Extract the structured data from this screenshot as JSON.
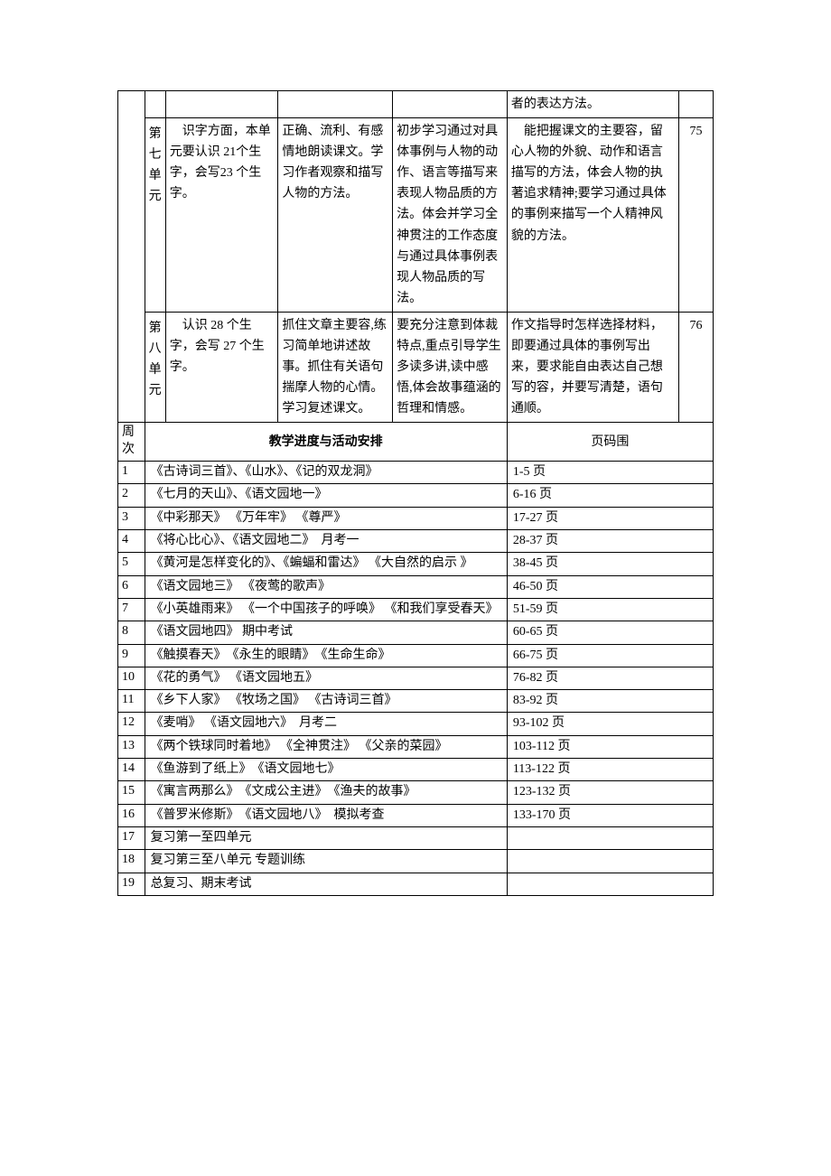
{
  "topRows": [
    {
      "label": "",
      "vocab": "",
      "skills": "",
      "methods": "",
      "focus": "者的表达方法。",
      "page": ""
    },
    {
      "label": "第七单元",
      "vocab": "　识字方面，本单元要认识 21个生字，会写23 个生字。",
      "skills": "正确、流利、有感情地朗读课文。学习作者观察和描写人物的方法。",
      "methods": "初步学习通过对具体事例与人物的动作、语言等描写来表现人物品质的方法。体会并学习全神贯注的工作态度与通过具体事例表现人物品质的写法。",
      "focus": "　能把握课文的主要容，留心人物的外貌、动作和语言描写的方法，体会人物的执著追求精神;要学习通过具体的事例来描写一个人精神风貌的方法。",
      "page": "75"
    },
    {
      "label": "第八单元",
      "vocab": "　认识 28 个生字，会写 27 个生字。",
      "skills": "抓住文章主要容,练习简单地讲述故事。抓住有关语句揣摩人物的心情。 学习复述课文。",
      "methods": "要充分注意到体裁特点,重点引导学生多读多讲,读中感悟,体会故事蕴涵的哲理和情感。",
      "focus": "作文指导时怎样选择材料，即要通过具体的事例写出来，要求能自由表达自己想写的容，并要写清楚，语句通顺。",
      "page": "76"
    }
  ],
  "scheduleHeader": {
    "week": "周次",
    "content": "教学进度与活动安排",
    "page": "页码围"
  },
  "schedule": [
    {
      "w": "1",
      "c": "《古诗词三首》、《山水》、《记的双龙洞》",
      "p": "1-5 页"
    },
    {
      "w": "2",
      "c": "《七月的天山》、《语文园地一》",
      "p": "6-16 页"
    },
    {
      "w": "3",
      "c": "《中彩那天》 《万年牢》 《尊严》",
      "p": "17-27 页"
    },
    {
      "w": "4",
      "c": "《将心比心》、《语文园地二》　月考一",
      "p": "28-37 页"
    },
    {
      "w": "5",
      "c": "《黄河是怎样变化的》、《蝙蝠和雷达》 《大自然的启示 》",
      "p": "38-45 页"
    },
    {
      "w": "6",
      "c": "《语文园地三》 《夜莺的歌声》",
      "p": "46-50 页"
    },
    {
      "w": "7",
      "c": "《小英雄雨来》 《一个中国孩子的呼唤》 《和我们享受春天》",
      "p": "51-59 页"
    },
    {
      "w": "8",
      "c": "《语文园地四》  期中考试",
      "p": "60-65 页"
    },
    {
      "w": "9",
      "c": "《触摸春天》　《永生的眼睛》　《生命生命》",
      "p": "66-75 页"
    },
    {
      "w": "10",
      "c": "《花的勇气》 《语文园地五》",
      "p": "76-82 页"
    },
    {
      "w": "11",
      "c": "《乡下人家》 《牧场之国》 《古诗词三首》",
      "p": "83-92 页"
    },
    {
      "w": "12",
      "c": "《麦哨》 《语文园地六》　月考二",
      "p": "93-102 页"
    },
    {
      "w": "13",
      "c": "《两个铁球同时着地》 《全神贯注》 《父亲的菜园》",
      "p": "103-112 页"
    },
    {
      "w": "14",
      "c": "《鱼游到了纸上》　《语文园地七》",
      "p": "113-122 页"
    },
    {
      "w": "15",
      "c": "《寓言两那么》　《文成公主进》　《渔夫的故事》",
      "p": "123-132 页"
    },
    {
      "w": "16",
      "c": "《普罗米修斯》　《语文园地八》　模拟考查",
      "p": "133-170 页"
    },
    {
      "w": "17",
      "c": "复习第一至四单元",
      "p": ""
    },
    {
      "w": "18",
      "c": "复习第三至八单元  专题训练",
      "p": ""
    },
    {
      "w": "19",
      "c": "总复习、期末考试",
      "p": ""
    }
  ]
}
